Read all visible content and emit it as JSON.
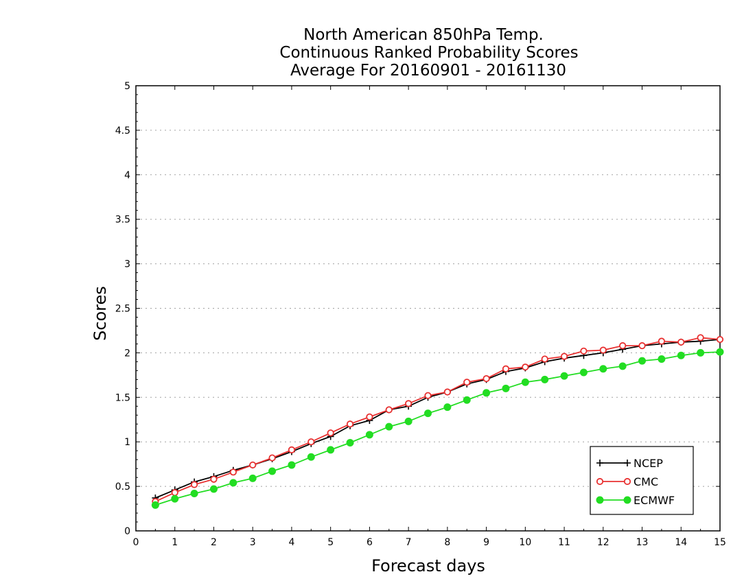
{
  "chart_data": {
    "type": "line",
    "title_lines": [
      "North American 850hPa Temp.",
      "Continuous Ranked Probability Scores",
      "Average For 20160901 - 20161130"
    ],
    "xlabel": "Forecast days",
    "ylabel": "Scores",
    "xlim": [
      0,
      15
    ],
    "ylim": [
      0,
      5
    ],
    "xticks": [
      "0",
      "1",
      "2",
      "3",
      "4",
      "5",
      "6",
      "7",
      "8",
      "9",
      "10",
      "11",
      "12",
      "13",
      "14",
      "15"
    ],
    "yticks": [
      "0",
      "0.5",
      "1",
      "1.5",
      "2",
      "2.5",
      "3",
      "3.5",
      "4",
      "4.5",
      "5"
    ],
    "grid": true,
    "legend_position": "bottom-right",
    "x": [
      0.5,
      1,
      1.5,
      2,
      2.5,
      3,
      3.5,
      4,
      4.5,
      5,
      5.5,
      6,
      6.5,
      7,
      7.5,
      8,
      8.5,
      9,
      9.5,
      10,
      10.5,
      11,
      11.5,
      12,
      12.5,
      13,
      13.5,
      14,
      14.5,
      15
    ],
    "series": [
      {
        "name": "NCEP",
        "color": "#000000",
        "marker": "plus",
        "values": [
          0.37,
          0.46,
          0.55,
          0.61,
          0.68,
          0.74,
          0.81,
          0.89,
          0.98,
          1.06,
          1.18,
          1.24,
          1.36,
          1.4,
          1.5,
          1.56,
          1.65,
          1.7,
          1.79,
          1.83,
          1.9,
          1.94,
          1.97,
          2.0,
          2.04,
          2.08,
          2.1,
          2.12,
          2.13,
          2.15
        ]
      },
      {
        "name": "CMC",
        "color": "#e83030",
        "marker": "open-circle",
        "values": [
          0.33,
          0.43,
          0.52,
          0.58,
          0.66,
          0.74,
          0.82,
          0.91,
          1.0,
          1.1,
          1.2,
          1.28,
          1.36,
          1.43,
          1.52,
          1.56,
          1.67,
          1.71,
          1.82,
          1.84,
          1.93,
          1.96,
          2.02,
          2.03,
          2.08,
          2.08,
          2.13,
          2.12,
          2.17,
          2.15
        ]
      },
      {
        "name": "ECMWF",
        "color": "#22dd22",
        "marker": "filled-circle",
        "values": [
          0.29,
          0.36,
          0.42,
          0.47,
          0.54,
          0.59,
          0.67,
          0.74,
          0.83,
          0.91,
          0.99,
          1.08,
          1.17,
          1.23,
          1.32,
          1.39,
          1.47,
          1.55,
          1.6,
          1.67,
          1.7,
          1.74,
          1.78,
          1.82,
          1.85,
          1.91,
          1.93,
          1.97,
          2.0,
          2.01
        ]
      }
    ]
  }
}
